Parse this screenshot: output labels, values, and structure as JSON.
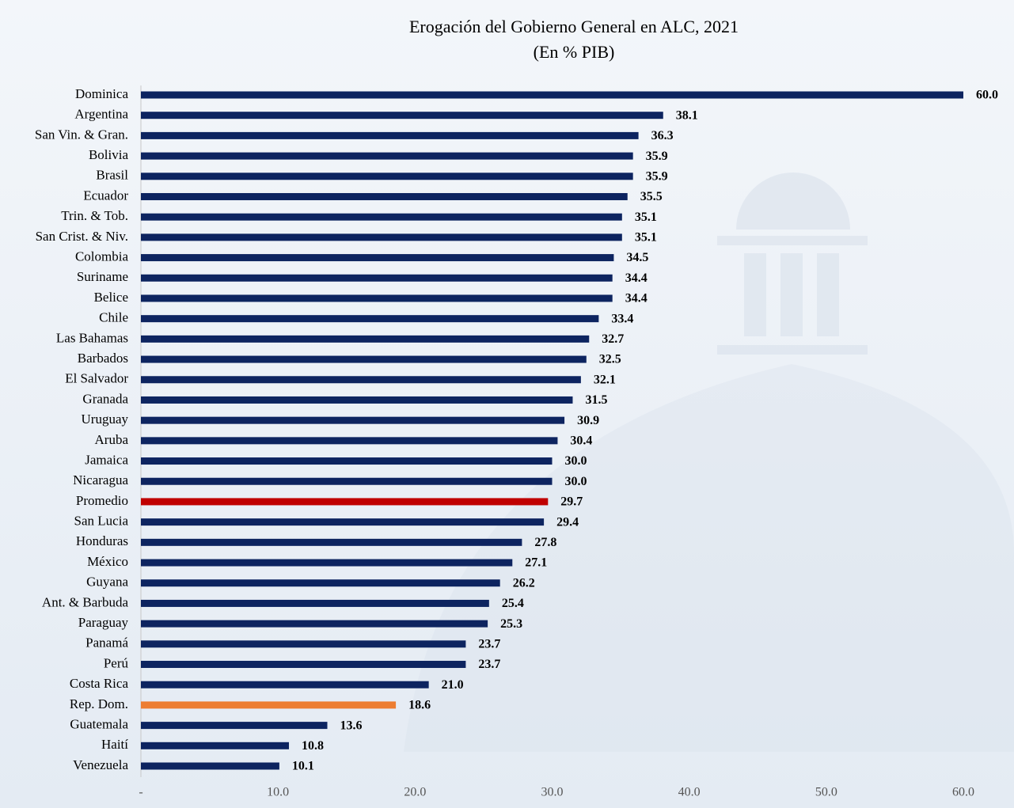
{
  "chart_data": {
    "type": "bar",
    "orientation": "horizontal",
    "title": "Erogación del Gobierno General en ALC, 2021",
    "subtitle": "(En % PIB)",
    "categories": [
      "Dominica",
      "Argentina",
      "San Vin. & Gran.",
      "Bolivia",
      "Brasil",
      "Ecuador",
      "Trin. & Tob.",
      "San Crist. & Niv.",
      "Colombia",
      "Suriname",
      "Belice",
      "Chile",
      "Las Bahamas",
      "Barbados",
      "El Salvador",
      "Granada",
      "Uruguay",
      "Aruba",
      "Jamaica",
      "Nicaragua",
      "Promedio",
      "San Lucia",
      "Honduras",
      "México",
      "Guyana",
      "Ant. & Barbuda",
      "Paraguay",
      "Panamá",
      "Perú",
      "Costa Rica",
      "Rep. Dom.",
      "Guatemala",
      "Haití",
      "Venezuela"
    ],
    "values": [
      60.0,
      38.1,
      36.3,
      35.9,
      35.9,
      35.5,
      35.1,
      35.1,
      34.5,
      34.4,
      34.4,
      33.4,
      32.7,
      32.5,
      32.1,
      31.5,
      30.9,
      30.4,
      30.0,
      30.0,
      29.7,
      29.4,
      27.8,
      27.1,
      26.2,
      25.4,
      25.3,
      23.7,
      23.7,
      21.0,
      18.6,
      13.6,
      10.8,
      10.1
    ],
    "value_labels": [
      "60.0",
      "38.1",
      "36.3",
      "35.9",
      "35.9",
      "35.5",
      "35.1",
      "35.1",
      "34.5",
      "34.4",
      "34.4",
      "33.4",
      "32.7",
      "32.5",
      "32.1",
      "31.5",
      "30.9",
      "30.4",
      "30.0",
      "30.0",
      "29.7",
      "29.4",
      "27.8",
      "27.1",
      "26.2",
      "25.4",
      "25.3",
      "23.7",
      "23.7",
      "21.0",
      "18.6",
      "13.6",
      "10.8",
      "10.1"
    ],
    "colors": [
      "#0d2460",
      "#0d2460",
      "#0d2460",
      "#0d2460",
      "#0d2460",
      "#0d2460",
      "#0d2460",
      "#0d2460",
      "#0d2460",
      "#0d2460",
      "#0d2460",
      "#0d2460",
      "#0d2460",
      "#0d2460",
      "#0d2460",
      "#0d2460",
      "#0d2460",
      "#0d2460",
      "#0d2460",
      "#0d2460",
      "#c00000",
      "#0d2460",
      "#0d2460",
      "#0d2460",
      "#0d2460",
      "#0d2460",
      "#0d2460",
      "#0d2460",
      "#0d2460",
      "#0d2460",
      "#ed7d31",
      "#0d2460",
      "#0d2460",
      "#0d2460"
    ],
    "xlim": [
      0,
      60
    ],
    "xticks": [
      {
        "value": 0,
        "label": "-"
      },
      {
        "value": 10,
        "label": "10.0"
      },
      {
        "value": 20,
        "label": "20.0"
      },
      {
        "value": 30,
        "label": "30.0"
      },
      {
        "value": 40,
        "label": "40.0"
      },
      {
        "value": 50,
        "label": "50.0"
      },
      {
        "value": 60,
        "label": "60.0"
      }
    ]
  }
}
